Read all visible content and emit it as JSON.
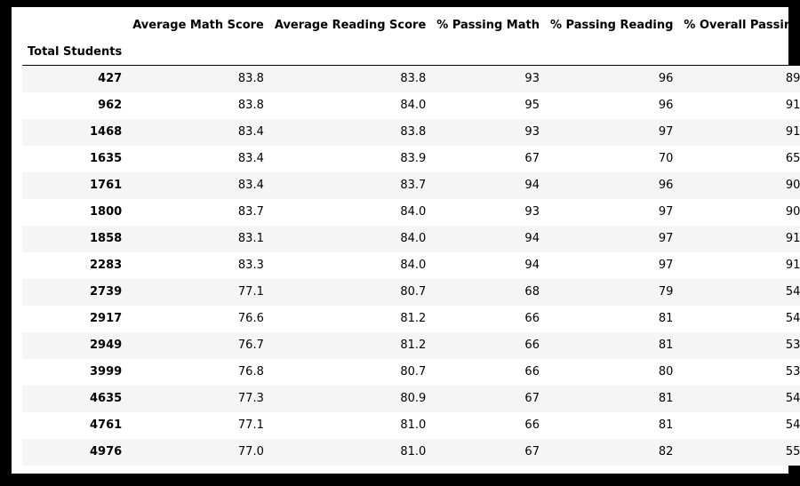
{
  "table": {
    "index_name": "Total Students",
    "columns": [
      "Average Math Score",
      "Average Reading Score",
      "% Passing Math",
      "% Passing Reading",
      "% Overall Passing"
    ],
    "rows": [
      {
        "index": "427",
        "cells": [
          "83.8",
          "83.8",
          "93",
          "96",
          "89"
        ]
      },
      {
        "index": "962",
        "cells": [
          "83.8",
          "84.0",
          "95",
          "96",
          "91"
        ]
      },
      {
        "index": "1468",
        "cells": [
          "83.4",
          "83.8",
          "93",
          "97",
          "91"
        ]
      },
      {
        "index": "1635",
        "cells": [
          "83.4",
          "83.9",
          "67",
          "70",
          "65"
        ]
      },
      {
        "index": "1761",
        "cells": [
          "83.4",
          "83.7",
          "94",
          "96",
          "90"
        ]
      },
      {
        "index": "1800",
        "cells": [
          "83.7",
          "84.0",
          "93",
          "97",
          "90"
        ]
      },
      {
        "index": "1858",
        "cells": [
          "83.1",
          "84.0",
          "94",
          "97",
          "91"
        ]
      },
      {
        "index": "2283",
        "cells": [
          "83.3",
          "84.0",
          "94",
          "97",
          "91"
        ]
      },
      {
        "index": "2739",
        "cells": [
          "77.1",
          "80.7",
          "68",
          "79",
          "54"
        ]
      },
      {
        "index": "2917",
        "cells": [
          "76.6",
          "81.2",
          "66",
          "81",
          "54"
        ]
      },
      {
        "index": "2949",
        "cells": [
          "76.7",
          "81.2",
          "66",
          "81",
          "53"
        ]
      },
      {
        "index": "3999",
        "cells": [
          "76.8",
          "80.7",
          "66",
          "80",
          "53"
        ]
      },
      {
        "index": "4635",
        "cells": [
          "77.3",
          "80.9",
          "67",
          "81",
          "54"
        ]
      },
      {
        "index": "4761",
        "cells": [
          "77.1",
          "81.0",
          "66",
          "81",
          "54"
        ]
      },
      {
        "index": "4976",
        "cells": [
          "77.0",
          "81.0",
          "67",
          "82",
          "55"
        ]
      }
    ]
  }
}
